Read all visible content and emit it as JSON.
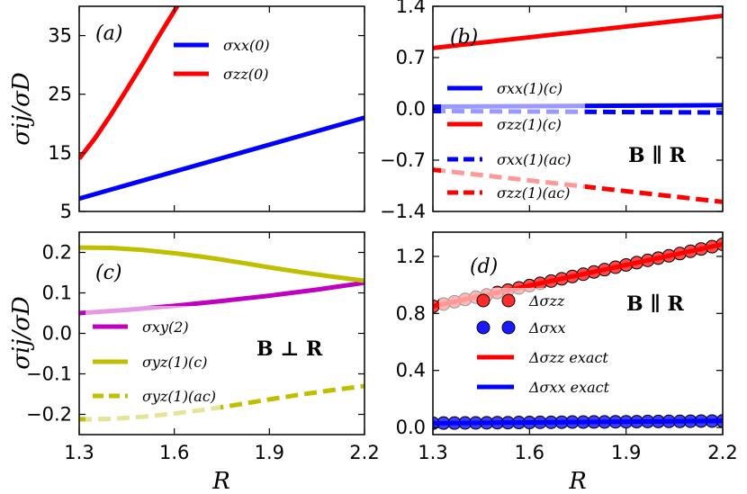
{
  "colors": {
    "blue": "#0000ff",
    "red": "#ff0000",
    "magenta": "#bf00bf",
    "olive": "#bfbf00",
    "marker_red": "#ff2a2a",
    "marker_blue": "#1a1aff"
  },
  "axis_labels": {
    "y_top": "σij/σD",
    "y_bottom": "σij/σD",
    "x_left": "R",
    "x_right": "R"
  },
  "chart_data": [
    {
      "panel": "a",
      "panel_label": "(a)",
      "type": "line",
      "xlabel": "",
      "ylabel": "σij/σD",
      "xlim": [
        1.3,
        2.2
      ],
      "ylim": [
        5,
        40
      ],
      "yticks": [
        "5",
        "15",
        "25",
        "35"
      ],
      "series": [
        {
          "name": "σxx(0)",
          "color": "blue",
          "style": "solid",
          "x": [
            1.3,
            2.2
          ],
          "y": [
            7.2,
            21.0
          ]
        },
        {
          "name": "σzz(0)",
          "color": "red",
          "style": "solid",
          "x": [
            1.3,
            1.35,
            1.4,
            1.45,
            1.5,
            1.55,
            1.6,
            1.62
          ],
          "y": [
            14.0,
            17.5,
            21.5,
            25.8,
            30.2,
            34.8,
            39.2,
            41.0
          ]
        }
      ]
    },
    {
      "panel": "b",
      "panel_label": "(b)",
      "type": "line",
      "xlabel": "",
      "ylabel": "",
      "xlim": [
        1.3,
        2.2
      ],
      "ylim": [
        -1.4,
        1.4
      ],
      "yticks": [
        "1.4",
        "0.7",
        "0.0",
        "−0.7",
        "−1.4"
      ],
      "annotation": "B ∥ R",
      "series": [
        {
          "name": "σxx(1)(c)",
          "color": "blue",
          "style": "solid",
          "x": [
            1.3,
            2.2
          ],
          "y": [
            0.03,
            0.05
          ]
        },
        {
          "name": "σzz(1)(c)",
          "color": "red",
          "style": "solid",
          "x": [
            1.3,
            2.2
          ],
          "y": [
            0.83,
            1.27
          ]
        },
        {
          "name": "σxx(1)(ac)",
          "color": "blue",
          "style": "dashed",
          "x": [
            1.3,
            2.2
          ],
          "y": [
            -0.03,
            -0.05
          ]
        },
        {
          "name": "σzz(1)(ac)",
          "color": "red",
          "style": "dashed",
          "x": [
            1.3,
            2.2
          ],
          "y": [
            -0.83,
            -1.27
          ]
        }
      ]
    },
    {
      "panel": "c",
      "panel_label": "(c)",
      "type": "line",
      "xlabel": "R",
      "ylabel": "σij/σD",
      "xlim": [
        1.3,
        2.2
      ],
      "ylim": [
        -0.25,
        0.25
      ],
      "xticks": [
        "1.3",
        "1.6",
        "1.9",
        "2.2"
      ],
      "yticks": [
        "0.2",
        "0.1",
        "0.0",
        "−0.1",
        "−0.2"
      ],
      "annotation": "B ⊥ R",
      "series": [
        {
          "name": "σxy(2)",
          "color": "magenta",
          "style": "solid",
          "x": [
            1.3,
            1.45,
            1.6,
            1.75,
            1.9,
            2.05,
            2.2
          ],
          "y": [
            0.05,
            0.058,
            0.068,
            0.08,
            0.093,
            0.108,
            0.125
          ]
        },
        {
          "name": "σyz(1)(c)",
          "color": "olive",
          "style": "solid",
          "x": [
            1.3,
            1.4,
            1.5,
            1.6,
            1.7,
            1.8,
            1.9,
            2.0,
            2.1,
            2.2
          ],
          "y": [
            0.212,
            0.211,
            0.206,
            0.198,
            0.188,
            0.176,
            0.163,
            0.151,
            0.14,
            0.13
          ]
        },
        {
          "name": "σyz(1)(ac)",
          "color": "olive",
          "style": "dashed",
          "x": [
            1.3,
            1.4,
            1.5,
            1.6,
            1.7,
            1.8,
            1.9,
            2.0,
            2.1,
            2.2
          ],
          "y": [
            -0.212,
            -0.211,
            -0.206,
            -0.198,
            -0.188,
            -0.176,
            -0.163,
            -0.151,
            -0.14,
            -0.13
          ]
        }
      ]
    },
    {
      "panel": "d",
      "panel_label": "(d)",
      "type": "line",
      "xlabel": "R",
      "ylabel": "",
      "xlim": [
        1.3,
        2.2
      ],
      "ylim": [
        -0.05,
        1.37
      ],
      "xticks": [
        "1.3",
        "1.6",
        "1.9",
        "2.2"
      ],
      "yticks": [
        "1.2",
        "0.8",
        "0.4",
        "0.0"
      ],
      "annotation": "B ∥ R",
      "series": [
        {
          "name": "Δσzz",
          "color": "marker_red",
          "style": "markers",
          "x": [
            1.3,
            1.333,
            1.367,
            1.4,
            1.433,
            1.467,
            1.5,
            1.533,
            1.567,
            1.6,
            1.633,
            1.667,
            1.7,
            1.733,
            1.767,
            1.8,
            1.833,
            1.867,
            1.9,
            1.933,
            1.967,
            2.0,
            2.033,
            2.067,
            2.1,
            2.133,
            2.167,
            2.2
          ],
          "y": [
            0.85,
            0.866,
            0.882,
            0.898,
            0.914,
            0.93,
            0.946,
            0.963,
            0.979,
            0.995,
            1.011,
            1.027,
            1.043,
            1.059,
            1.075,
            1.091,
            1.107,
            1.124,
            1.14,
            1.156,
            1.172,
            1.188,
            1.204,
            1.22,
            1.236,
            1.252,
            1.268,
            1.285
          ]
        },
        {
          "name": "Δσxx",
          "color": "marker_blue",
          "style": "markers",
          "x": [
            1.3,
            1.333,
            1.367,
            1.4,
            1.433,
            1.467,
            1.5,
            1.533,
            1.567,
            1.6,
            1.633,
            1.667,
            1.7,
            1.733,
            1.767,
            1.8,
            1.833,
            1.867,
            1.9,
            1.933,
            1.967,
            2.0,
            2.033,
            2.067,
            2.1,
            2.133,
            2.167,
            2.2
          ],
          "y": [
            0.03,
            0.031,
            0.031,
            0.032,
            0.032,
            0.033,
            0.034,
            0.034,
            0.035,
            0.035,
            0.036,
            0.036,
            0.037,
            0.038,
            0.038,
            0.039,
            0.039,
            0.04,
            0.04,
            0.041,
            0.042,
            0.042,
            0.043,
            0.043,
            0.044,
            0.045,
            0.045,
            0.046
          ]
        },
        {
          "name": "Δσzz exact",
          "color": "red",
          "style": "solid",
          "x": [
            1.3,
            2.2
          ],
          "y": [
            0.85,
            1.285
          ]
        },
        {
          "name": "Δσxx exact",
          "color": "blue",
          "style": "solid",
          "x": [
            1.3,
            2.2
          ],
          "y": [
            0.03,
            0.046
          ]
        }
      ]
    }
  ]
}
